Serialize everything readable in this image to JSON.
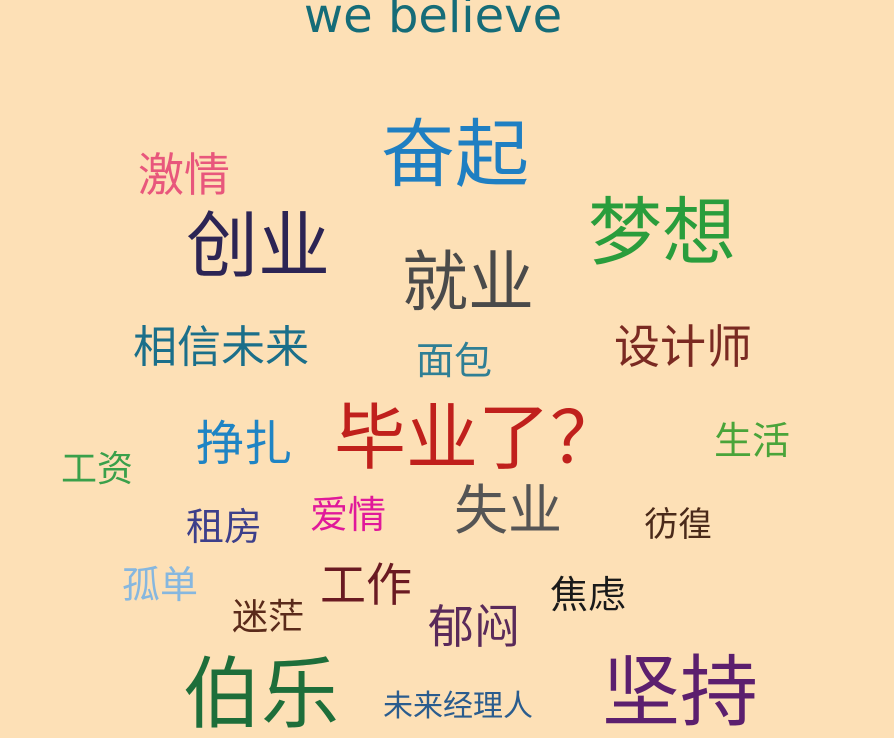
{
  "page": {
    "background": "#fde0b6",
    "title": {
      "text": "we believe",
      "color": "#156c78"
    }
  },
  "words": {
    "fenqi": {
      "text": "奋起",
      "color": "#1f7fc2"
    },
    "jiqing": {
      "text": "激情",
      "color": "#e8577c"
    },
    "chuangye": {
      "text": "创业",
      "color": "#2c2454"
    },
    "mengxiang": {
      "text": "梦想",
      "color": "#2a9d3c"
    },
    "jiuye": {
      "text": "就业",
      "color": "#4a4a4a"
    },
    "xiangxin": {
      "text": "相信未来",
      "color": "#1b6f8a"
    },
    "mianbao": {
      "text": "面包",
      "color": "#2f7f95"
    },
    "shejishi": {
      "text": "设计师",
      "color": "#7a2a22"
    },
    "biye": {
      "text": "毕业了？",
      "color": "#c0201c"
    },
    "zhengzha": {
      "text": "挣扎",
      "color": "#1f84c4"
    },
    "shenghuo": {
      "text": "生活",
      "color": "#4aa43a"
    },
    "gongzi": {
      "text": "工资",
      "color": "#3aa04a"
    },
    "zufang": {
      "text": "租房",
      "color": "#3d3f8a"
    },
    "aiqing": {
      "text": "爱情",
      "color": "#e0199a"
    },
    "shiye": {
      "text": "失业",
      "color": "#555555"
    },
    "panghuang": {
      "text": "彷徨",
      "color": "#4a2a1a"
    },
    "gudan": {
      "text": "孤单",
      "color": "#86b7df"
    },
    "gongzuo": {
      "text": "工作",
      "color": "#6a1a22"
    },
    "jiaolv": {
      "text": "焦虑",
      "color": "#1a1a1a"
    },
    "mimang": {
      "text": "迷茫",
      "color": "#5a2a1a"
    },
    "yumen": {
      "text": "郁闷",
      "color": "#5a2a5a"
    },
    "bole": {
      "text": "伯乐",
      "color": "#1e6e3a"
    },
    "weilai": {
      "text": "未来经理人",
      "color": "#2a5c8e"
    },
    "jianchi": {
      "text": "坚持",
      "color": "#5c1f6e"
    }
  }
}
